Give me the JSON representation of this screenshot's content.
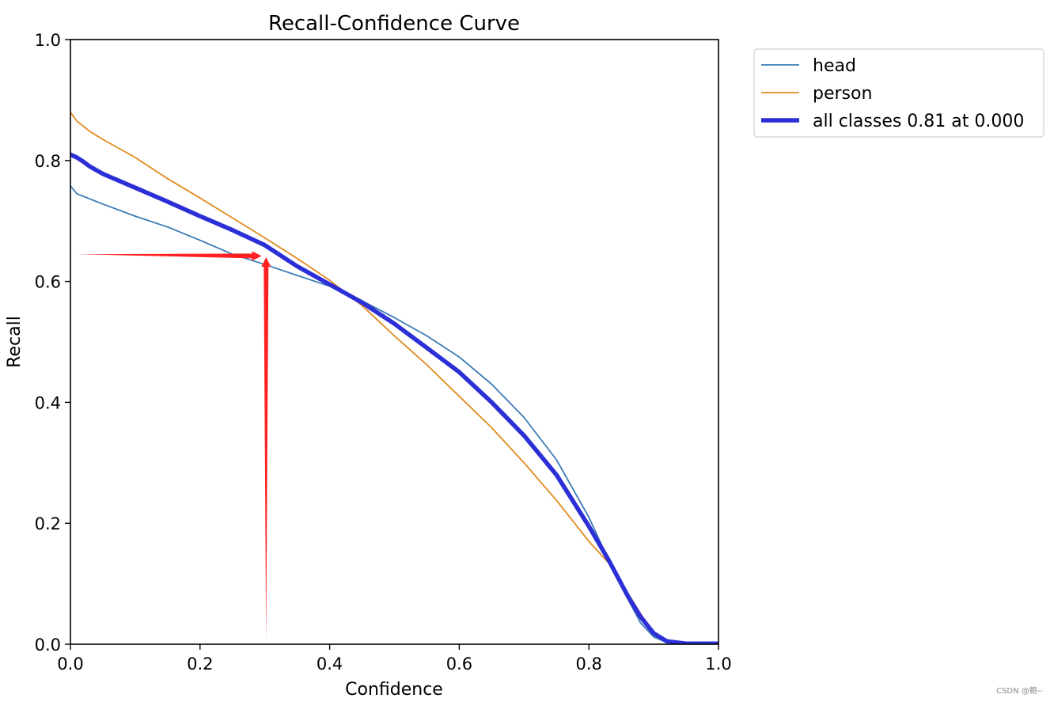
{
  "chart_data": {
    "type": "line",
    "title": "Recall-Confidence Curve",
    "xlabel": "Confidence",
    "ylabel": "Recall",
    "xlim": [
      0.0,
      1.0
    ],
    "ylim": [
      0.0,
      1.0
    ],
    "xticks": [
      "0.0",
      "0.2",
      "0.4",
      "0.6",
      "0.8",
      "1.0"
    ],
    "yticks": [
      "0.0",
      "0.2",
      "0.4",
      "0.6",
      "0.8",
      "1.0"
    ],
    "grid": false,
    "legend_position": "outside-top-right",
    "series": [
      {
        "name": "head",
        "color": "#3b7bb4",
        "x": [
          0.0,
          0.01,
          0.05,
          0.1,
          0.15,
          0.2,
          0.25,
          0.3,
          0.35,
          0.4,
          0.45,
          0.5,
          0.55,
          0.6,
          0.65,
          0.7,
          0.75,
          0.8,
          0.83,
          0.86,
          0.88,
          0.9,
          0.92,
          0.95,
          1.0
        ],
        "y": [
          0.758,
          0.745,
          0.728,
          0.708,
          0.69,
          0.668,
          0.645,
          0.628,
          0.61,
          0.592,
          0.568,
          0.54,
          0.51,
          0.475,
          0.43,
          0.375,
          0.305,
          0.21,
          0.14,
          0.075,
          0.035,
          0.012,
          0.003,
          0.001,
          0.001
        ]
      },
      {
        "name": "person",
        "color": "#e08a1e",
        "x": [
          0.0,
          0.01,
          0.03,
          0.05,
          0.1,
          0.15,
          0.2,
          0.25,
          0.3,
          0.35,
          0.4,
          0.45,
          0.5,
          0.55,
          0.6,
          0.65,
          0.7,
          0.75,
          0.8,
          0.83,
          0.86,
          0.88,
          0.9,
          0.92,
          0.95,
          1.0
        ],
        "y": [
          0.88,
          0.865,
          0.848,
          0.835,
          0.805,
          0.77,
          0.738,
          0.705,
          0.672,
          0.638,
          0.602,
          0.56,
          0.51,
          0.462,
          0.41,
          0.358,
          0.3,
          0.238,
          0.17,
          0.135,
          0.085,
          0.05,
          0.02,
          0.006,
          0.001,
          0.001
        ]
      },
      {
        "name": "all classes 0.81 at 0.000",
        "color": "#2c2fd6",
        "x": [
          0.0,
          0.01,
          0.02,
          0.03,
          0.05,
          0.1,
          0.15,
          0.2,
          0.25,
          0.3,
          0.35,
          0.4,
          0.45,
          0.5,
          0.55,
          0.6,
          0.65,
          0.7,
          0.75,
          0.8,
          0.83,
          0.86,
          0.88,
          0.9,
          0.92,
          0.95,
          1.0
        ],
        "y": [
          0.81,
          0.805,
          0.798,
          0.79,
          0.778,
          0.755,
          0.732,
          0.708,
          0.685,
          0.66,
          0.625,
          0.595,
          0.565,
          0.53,
          0.49,
          0.45,
          0.4,
          0.345,
          0.28,
          0.195,
          0.14,
          0.08,
          0.045,
          0.018,
          0.005,
          0.001,
          0.001
        ]
      }
    ],
    "annotations": [
      {
        "type": "arrow",
        "color": "#ff2020",
        "from": [
          0.01,
          0.645
        ],
        "to": [
          0.295,
          0.642
        ]
      },
      {
        "type": "arrow",
        "color": "#ff2020",
        "from": [
          0.302,
          0.005
        ],
        "to": [
          0.302,
          0.64
        ]
      }
    ]
  },
  "watermark": "CSDN @鲍--"
}
